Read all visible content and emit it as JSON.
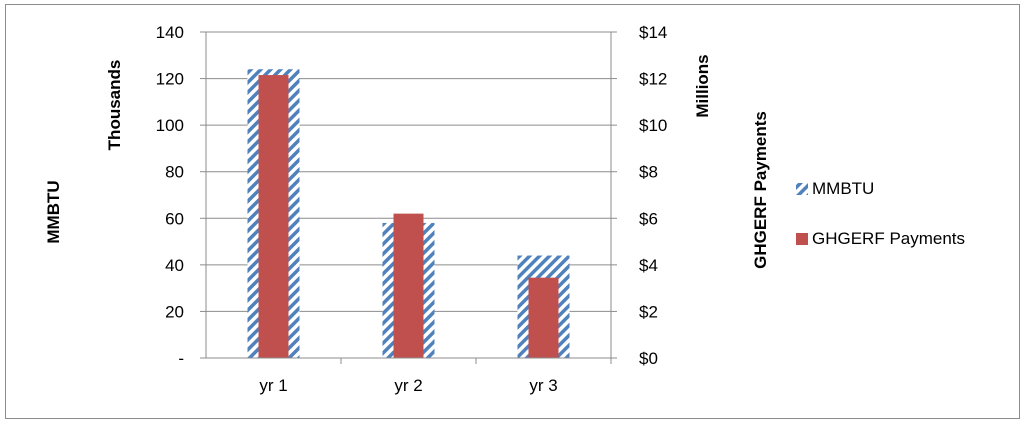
{
  "chart_data": {
    "type": "bar",
    "categories": [
      "yr 1",
      "yr 2",
      "yr 3"
    ],
    "series": [
      {
        "name": "MMBTU",
        "axis": "left",
        "values": [
          124,
          58,
          44
        ],
        "color": "#4f81bd",
        "fill": "hatched"
      },
      {
        "name": "GHGERF Payments",
        "axis": "right",
        "values": [
          12.15,
          6.2,
          3.45
        ],
        "color": "#c0504d",
        "fill": "solid"
      }
    ],
    "left_axis": {
      "label": "MMBTU",
      "unit_label": "Thousands",
      "min": 0,
      "max": 140,
      "step": 20,
      "tick_labels": [
        "-",
        "20",
        "40",
        "60",
        "80",
        "100",
        "120",
        "140"
      ]
    },
    "right_axis": {
      "label": "GHGERF Payments",
      "unit_label": "Millions",
      "min": 0,
      "max": 14,
      "step": 2,
      "tick_labels": [
        "$0",
        "$2",
        "$4",
        "$6",
        "$8",
        "$10",
        "$12",
        "$14"
      ]
    },
    "grid": true,
    "legend": {
      "position": "right"
    },
    "title": ""
  }
}
